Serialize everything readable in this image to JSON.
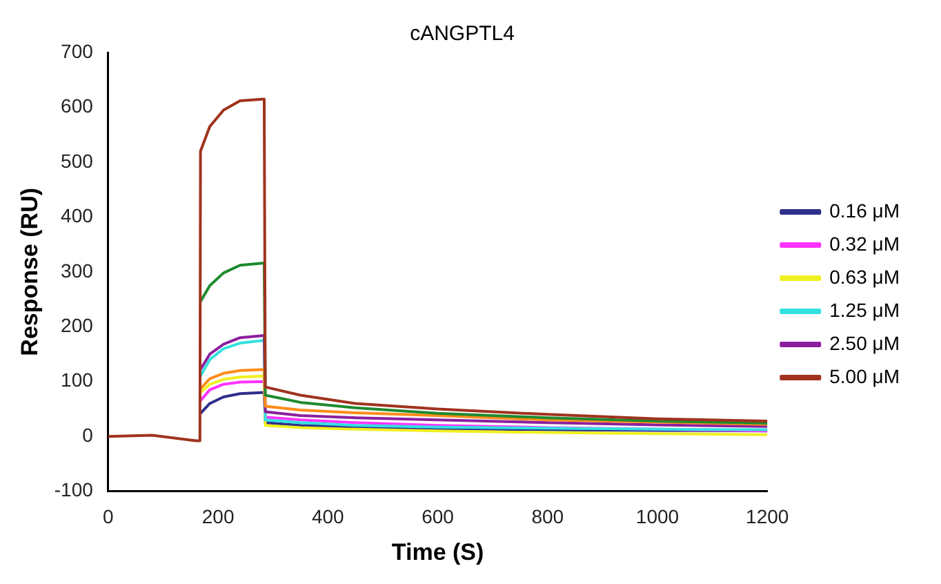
{
  "chart_data": {
    "type": "line",
    "title": "cANGPTL4",
    "xlabel": "Time (S)",
    "ylabel": "Response (RU)",
    "x": [
      0,
      80,
      160,
      167,
      168,
      185,
      210,
      240,
      284,
      286,
      350,
      450,
      600,
      800,
      1000,
      1200
    ],
    "xlim": [
      0,
      1200
    ],
    "xticks": [
      0,
      200,
      400,
      600,
      800,
      1000,
      1200
    ],
    "ylim": [
      -100,
      700
    ],
    "yticks": [
      -100,
      0,
      100,
      200,
      300,
      400,
      500,
      600,
      700
    ],
    "grid": false,
    "legend": "right",
    "marker": "none",
    "line_style": "solid",
    "series": [
      {
        "name": "0.16 μM",
        "color": "#2e2e8c",
        "values": [
          null,
          null,
          null,
          null,
          42,
          60,
          72,
          78,
          80,
          25,
          20,
          17,
          14,
          12,
          11,
          10
        ]
      },
      {
        "name": "0.32 μM",
        "color": "#ff33ff",
        "values": [
          null,
          null,
          null,
          null,
          65,
          85,
          95,
          99,
          100,
          35,
          30,
          25,
          20,
          16,
          13,
          10
        ]
      },
      {
        "name": "0.63 μM",
        "color": "#f0f020",
        "values": [
          null,
          null,
          null,
          null,
          80,
          95,
          104,
          108,
          110,
          20,
          16,
          13,
          10,
          7,
          5,
          3
        ]
      },
      {
        "name": "1.25 μM",
        "color": "#33e0e0",
        "values": [
          null,
          null,
          null,
          null,
          110,
          140,
          160,
          170,
          175,
          30,
          25,
          20,
          17,
          15,
          13,
          12
        ]
      },
      {
        "name": "2.50 μM",
        "color": "#8b1f9e",
        "values": [
          null,
          null,
          null,
          null,
          122,
          150,
          168,
          180,
          184,
          45,
          38,
          34,
          30,
          25,
          21,
          18
        ]
      },
      {
        "color": "#ff8c1a",
        "values": [
          null,
          null,
          null,
          null,
          87,
          105,
          115,
          120,
          122,
          55,
          48,
          43,
          38,
          30,
          26,
          22
        ]
      },
      {
        "color": "#1e8a2e",
        "values": [
          null,
          null,
          null,
          null,
          246,
          275,
          298,
          312,
          316,
          75,
          62,
          52,
          42,
          34,
          28,
          24
        ]
      },
      {
        "name": "5.00 μM",
        "color": "#a0321e",
        "values": [
          0,
          2,
          -8,
          -8,
          520,
          565,
          595,
          612,
          615,
          90,
          75,
          60,
          50,
          40,
          32,
          28
        ]
      }
    ]
  }
}
